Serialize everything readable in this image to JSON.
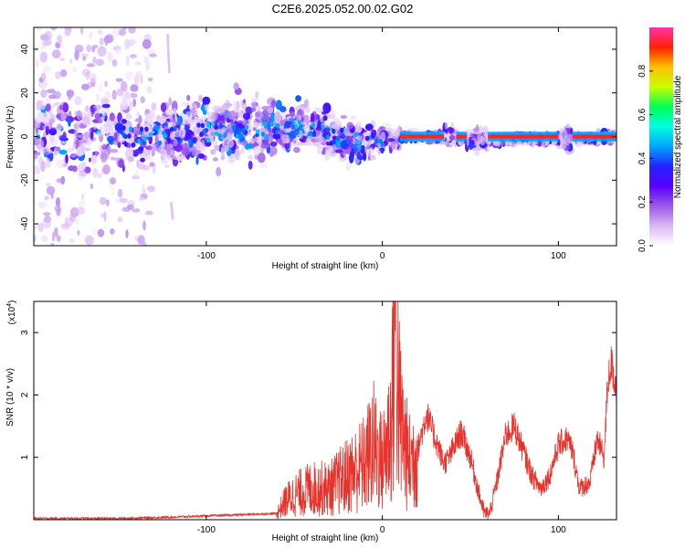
{
  "figure_title": "C2E6.2025.052.00.02.G02",
  "colors": {
    "snr_line": "#e8322c",
    "colormap": [
      "#ffffff",
      "#d9b7f3",
      "#9a58e8",
      "#5a00ff",
      "#2222ff",
      "#00a6ff",
      "#00ffe0",
      "#00ff55",
      "#c8ff00",
      "#ffc000",
      "#ff2000",
      "#ff33aa"
    ]
  },
  "chart_data": [
    {
      "type": "heatmap",
      "title": "C2E6.2025.052.00.02.G02",
      "xlabel": "Height of straight line (km)",
      "ylabel": "Frequency (Hz)",
      "xlim": [
        -198,
        133
      ],
      "ylim": [
        -50,
        50
      ],
      "xticks": [
        -100,
        0,
        100
      ],
      "yticks": [
        -40,
        -20,
        0,
        20,
        40
      ],
      "grid": false,
      "colorbar": {
        "label": "Normalized spectral amplitude",
        "range": [
          0,
          1
        ],
        "ticks": [
          "0.0",
          "0.2",
          "0.4",
          "0.6",
          "0.8"
        ],
        "tick_values": [
          0.0,
          0.2,
          0.4,
          0.6,
          0.8
        ]
      },
      "band_center_hz": [
        [
          -198,
          1
        ],
        [
          -150,
          0
        ],
        [
          -120,
          0
        ],
        [
          -100,
          2
        ],
        [
          -80,
          4
        ],
        [
          -60,
          3
        ],
        [
          -45,
          6
        ],
        [
          -35,
          3
        ],
        [
          -20,
          -2
        ],
        [
          -10,
          -3
        ],
        [
          0,
          -1
        ],
        [
          10,
          0
        ],
        [
          40,
          0
        ],
        [
          50,
          -2
        ],
        [
          60,
          -2
        ],
        [
          80,
          -1
        ],
        [
          100,
          -1
        ],
        [
          133,
          0
        ]
      ],
      "strong_tone_segments_km": [
        [
          10,
          35
        ],
        [
          42,
          48
        ],
        [
          60,
          100
        ],
        [
          108,
          133
        ]
      ]
    },
    {
      "type": "line",
      "xlabel": "Height of straight line (km)",
      "ylabel": "SNR (10 * v/v)",
      "y_multiplier": "(x10",
      "y_multiplier_exp": "4",
      "y_multiplier_close": ")",
      "xlim": [
        -198,
        133
      ],
      "ylim": [
        0,
        3.5
      ],
      "xticks": [
        -100,
        0,
        100
      ],
      "yticks": [
        1,
        2,
        3
      ],
      "grid": false,
      "series": [
        {
          "x": [
            -198,
            -150,
            -120,
            -100,
            -80,
            -60,
            -55,
            -50,
            -40,
            -30,
            -25,
            -20,
            -10,
            -5,
            0,
            5,
            7,
            10,
            15,
            20,
            25,
            30,
            35,
            38,
            42,
            45,
            50,
            55,
            58,
            61,
            65,
            70,
            75,
            80,
            85,
            90,
            95,
            100,
            105,
            108,
            112,
            118,
            122,
            126,
            128,
            130,
            133
          ],
          "y": [
            0.02,
            0.02,
            0.04,
            0.06,
            0.08,
            0.1,
            0.3,
            0.4,
            0.5,
            0.5,
            0.6,
            0.7,
            0.9,
            1.2,
            0.9,
            1.5,
            3.4,
            1.6,
            0.9,
            1.1,
            1.7,
            1.3,
            0.9,
            1.0,
            1.25,
            1.4,
            1.0,
            0.4,
            0.1,
            0.1,
            0.6,
            1.35,
            1.5,
            1.1,
            0.7,
            0.5,
            0.7,
            1.2,
            1.3,
            1.1,
            0.5,
            0.6,
            1.3,
            1.0,
            2.2,
            2.5,
            2.1
          ]
        }
      ]
    }
  ]
}
